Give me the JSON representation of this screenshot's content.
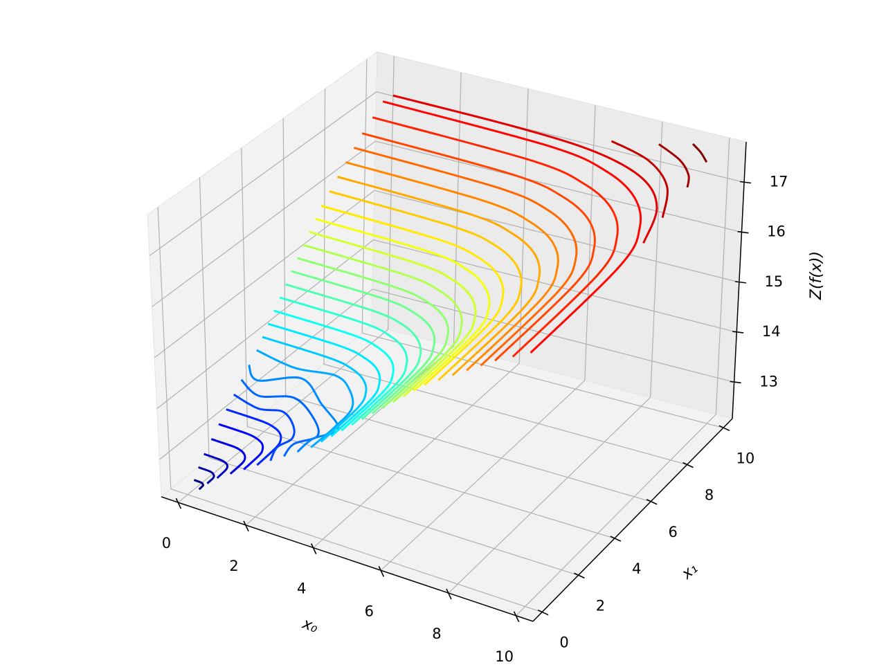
{
  "chart_data": {
    "type": "contour3d",
    "xlabel": "x₀",
    "ylabel": "x₁",
    "zlabel": "Z(f(x))",
    "xlim": [
      -0.5,
      10.5
    ],
    "ylim": [
      -0.5,
      10.5
    ],
    "zlim": [
      12.27,
      17.81
    ],
    "xticks": [
      0,
      2,
      4,
      6,
      8,
      10
    ],
    "yticks": [
      0,
      2,
      4,
      6,
      8,
      10
    ],
    "zticks": [
      13,
      14,
      15,
      16,
      17
    ],
    "grid": true,
    "cmap": "jet",
    "contours": [
      {
        "level": 12.45,
        "x0": [
          0,
          0.18,
          0.25,
          0.29,
          0.33,
          0.34,
          0.35
        ],
        "x1": [
          0.35,
          0.34,
          0.33,
          0.29,
          0.25,
          0.18,
          0
        ]
      },
      {
        "level": 12.62,
        "x0": [
          0,
          0.31,
          0.42,
          0.5,
          0.56,
          0.59,
          0.6
        ],
        "x1": [
          0.6,
          0.59,
          0.56,
          0.5,
          0.42,
          0.31,
          0
        ]
      },
      {
        "level": 12.79,
        "x0": [
          0,
          0.46,
          0.64,
          0.76,
          0.84,
          0.88,
          0.9
        ],
        "x1": [
          0.9,
          0.88,
          0.84,
          0.76,
          0.64,
          0.46,
          0
        ]
      },
      {
        "level": 12.96,
        "x0": [
          0,
          0.66,
          0.92,
          1.09,
          1.21,
          1.28,
          1.3
        ],
        "x1": [
          1.3,
          1.28,
          1.21,
          1.09,
          0.92,
          0.66,
          0
        ]
      },
      {
        "level": 13.13,
        "x0": [
          0,
          0.87,
          1.2,
          1.43,
          1.58,
          1.67,
          1.7
        ],
        "x1": [
          1.7,
          1.67,
          1.58,
          1.43,
          1.2,
          0.87,
          0
        ]
      },
      {
        "level": 13.3,
        "x0": [
          0,
          1.07,
          1.48,
          1.77,
          1.96,
          2.06,
          2.1
        ],
        "x1": [
          2.1,
          2.06,
          1.96,
          1.77,
          1.48,
          1.07,
          0
        ]
      },
      {
        "level": 13.47,
        "x0": [
          0,
          0.9,
          1.5,
          2.1,
          2.4,
          2.3,
          2.5
        ],
        "x1": [
          2.5,
          2.2,
          2.4,
          1.9,
          1.3,
          0.7,
          0
        ]
      },
      {
        "level": 13.64,
        "x0": [
          0,
          0.8,
          1.6,
          2.5,
          3.1,
          2.8,
          2.9
        ],
        "x1": [
          2.9,
          2.4,
          2.8,
          2.2,
          1.4,
          0.7,
          0
        ]
      },
      {
        "level": 13.81,
        "x0": [
          0,
          0.6,
          1.5,
          2.6,
          3.6,
          3.3,
          3.3
        ],
        "x1": [
          3.3,
          2.7,
          3.4,
          2.5,
          1.6,
          0.8,
          0
        ]
      },
      {
        "level": 13.98,
        "x0": [
          0,
          1.3,
          2.4,
          3.1,
          3.6,
          3.7,
          3.7
        ],
        "x1": [
          3.7,
          3.4,
          3.6,
          3.1,
          2.3,
          1.2,
          0
        ]
      },
      {
        "level": 14.15,
        "x0": [
          0,
          2.04,
          2.83,
          3.36,
          3.72,
          3.93,
          4
        ],
        "x1": [
          4,
          3.93,
          3.72,
          3.36,
          2.83,
          2.04,
          0
        ]
      },
      {
        "level": 14.32,
        "x0": [
          0,
          2.19,
          3.04,
          3.62,
          4,
          4.23,
          4.3
        ],
        "x1": [
          4.3,
          4.23,
          4,
          3.62,
          3.04,
          2.19,
          0
        ]
      },
      {
        "level": 14.49,
        "x0": [
          0,
          2.34,
          3.25,
          3.87,
          4.28,
          4.52,
          4.6
        ],
        "x1": [
          4.6,
          4.52,
          4.28,
          3.87,
          3.25,
          2.34,
          0
        ]
      },
      {
        "level": 14.66,
        "x0": [
          0,
          2.49,
          3.46,
          4.12,
          4.56,
          4.82,
          4.9
        ],
        "x1": [
          4.9,
          4.82,
          4.56,
          4.12,
          3.46,
          2.49,
          0
        ]
      },
      {
        "level": 14.83,
        "x0": [
          0,
          2.65,
          3.68,
          4.37,
          4.84,
          5.11,
          5.2
        ],
        "x1": [
          5.2,
          5.11,
          4.84,
          4.37,
          3.68,
          2.65,
          0
        ]
      },
      {
        "level": 15.0,
        "x0": [
          0,
          2.8,
          3.89,
          4.63,
          5.12,
          5.41,
          5.5
        ],
        "x1": [
          5.5,
          5.41,
          5.12,
          4.63,
          3.89,
          2.8,
          0
        ]
      },
      {
        "level": 15.17,
        "x0": [
          0,
          2.95,
          4.1,
          4.88,
          5.4,
          5.7,
          5.8
        ],
        "x1": [
          5.8,
          5.7,
          5.4,
          4.88,
          4.1,
          2.95,
          0
        ]
      },
      {
        "level": 15.34,
        "x0": [
          0,
          3.1,
          4.31,
          5.13,
          5.68,
          6,
          6.1
        ],
        "x1": [
          6.1,
          6,
          5.68,
          5.13,
          4.31,
          3.1,
          0
        ]
      },
      {
        "level": 15.51,
        "x0": [
          0,
          3.26,
          4.52,
          5.38,
          5.96,
          6.29,
          6.4
        ],
        "x1": [
          6.4,
          6.29,
          5.96,
          5.38,
          4.52,
          3.26,
          0
        ]
      },
      {
        "level": 15.68,
        "x0": [
          0,
          3.41,
          4.74,
          5.63,
          6.24,
          6.59,
          6.7
        ],
        "x1": [
          6.7,
          6.59,
          6.24,
          5.63,
          4.74,
          3.41,
          0
        ]
      },
      {
        "level": 15.85,
        "x0": [
          0,
          3.56,
          4.95,
          5.89,
          6.52,
          6.88,
          7
        ],
        "x1": [
          7,
          6.88,
          6.52,
          5.89,
          4.95,
          3.56,
          0
        ]
      },
      {
        "level": 16.02,
        "x0": [
          0,
          3.77,
          5.23,
          6.22,
          6.89,
          7.27,
          7.4
        ],
        "x1": [
          7.4,
          7.27,
          6.89,
          6.22,
          5.23,
          3.77,
          0
        ]
      },
      {
        "level": 16.19,
        "x0": [
          0,
          3.97,
          5.51,
          6.56,
          7.26,
          7.67,
          7.8
        ],
        "x1": [
          7.8,
          7.67,
          7.26,
          6.56,
          5.51,
          3.97,
          0
        ]
      },
      {
        "level": 16.36,
        "x0": [
          0,
          4.17,
          5.8,
          6.9,
          7.63,
          8.06,
          8.2
        ],
        "x1": [
          8.2,
          8.06,
          7.63,
          6.9,
          5.8,
          4.17,
          0
        ]
      },
      {
        "level": 16.53,
        "x0": [
          0,
          4.38,
          6.08,
          7.23,
          8.01,
          8.45,
          8.6
        ],
        "x1": [
          8.6,
          8.45,
          8.01,
          7.23,
          6.08,
          4.38,
          0
        ]
      },
      {
        "level": 16.7,
        "x0": [
          0,
          4.58,
          6.36,
          7.57,
          8.38,
          8.85,
          9
        ],
        "x1": [
          9,
          8.85,
          8.38,
          7.57,
          6.36,
          4.58,
          0
        ]
      },
      {
        "level": 16.87,
        "x0": [
          0,
          4.84,
          6.72,
          7.99,
          8.84,
          9.34,
          9.5
        ],
        "x1": [
          9.5,
          9.34,
          8.84,
          7.99,
          6.72,
          4.84,
          0
        ]
      },
      {
        "level": 17.04,
        "x0": [
          0,
          5.09,
          7.07,
          8.41,
          9.31,
          9.83,
          10
        ],
        "x1": [
          10,
          9.83,
          9.31,
          8.41,
          7.07,
          5.09,
          0
        ]
      },
      {
        "level": 17.21,
        "x0": [
          0.3,
          4,
          6.5,
          8.3,
          9.4,
          10
        ],
        "x1": [
          10,
          9.95,
          9.7,
          9.0,
          7.8,
          6.0
        ]
      },
      {
        "level": 17.38,
        "x0": [
          6.8,
          8.2,
          9.3,
          10
        ],
        "x1": [
          10,
          9.5,
          8.5,
          7.0
        ]
      },
      {
        "level": 17.55,
        "x0": [
          8.2,
          9.1,
          9.7,
          10
        ],
        "x1": [
          10,
          9.5,
          8.9,
          8.3
        ]
      },
      {
        "level": 17.72,
        "x0": [
          9.2,
          9.6,
          10
        ],
        "x1": [
          10,
          9.7,
          9.3
        ]
      }
    ]
  }
}
